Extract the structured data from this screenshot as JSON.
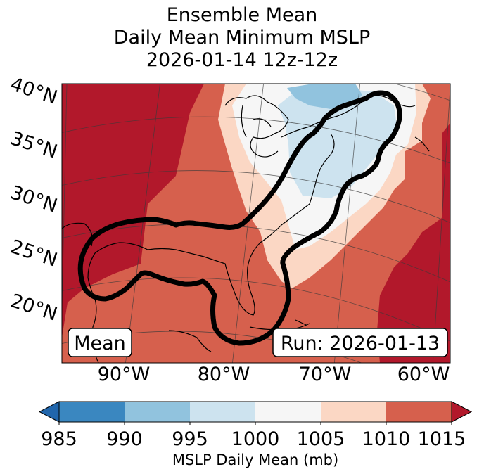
{
  "title": {
    "line1": "Ensemble Mean",
    "line2": "Daily Mean Minimum MSLP",
    "line3": "2026-01-14 12z-12z"
  },
  "map": {
    "lat_labels": [
      "40°N",
      "35°N",
      "30°N",
      "25°N",
      "20°N"
    ],
    "lon_labels": [
      "90°W",
      "80°W",
      "70°W",
      "60°W"
    ],
    "mean_box": "Mean",
    "run_box": "Run: 2026-01-13"
  },
  "colorbar": {
    "ticks": [
      "985",
      "990",
      "995",
      "1000",
      "1005",
      "1010",
      "1015"
    ],
    "label": "MSLP Daily Mean (mb)",
    "colors": [
      "#3a87c0",
      "#2166ac",
      "#91c3de",
      "#cde3ef",
      "#f6f6f6",
      "#fbd7c4",
      "#d6604d",
      "#b2182b"
    ]
  }
}
